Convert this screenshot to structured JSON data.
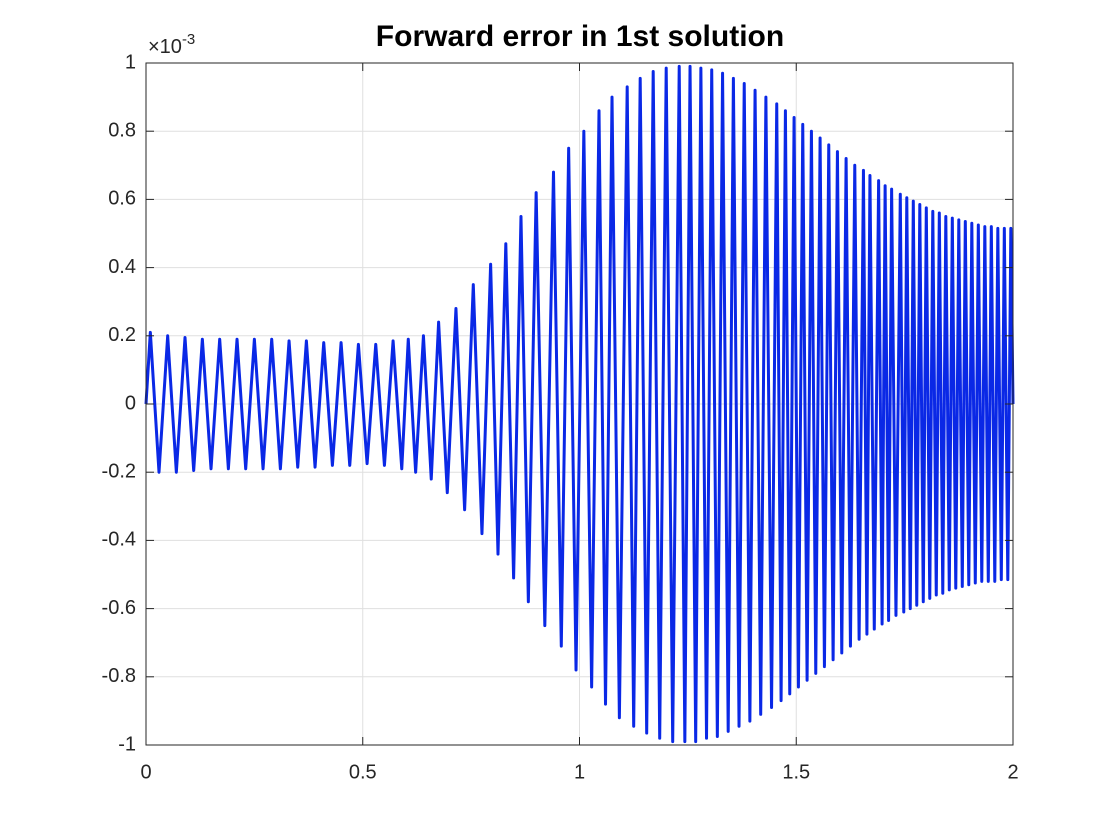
{
  "chart_data": {
    "type": "line",
    "title": "Forward error in 1st solution",
    "y_multiplier": "×10",
    "y_exponent": "-3",
    "x": [
      0,
      0.01,
      0.03,
      0.05,
      0.07,
      0.09,
      0.11,
      0.13,
      0.15,
      0.17,
      0.19,
      0.21,
      0.23,
      0.25,
      0.27,
      0.29,
      0.31,
      0.33,
      0.35,
      0.37,
      0.39,
      0.41,
      0.43,
      0.45,
      0.47,
      0.49,
      0.51,
      0.53,
      0.55,
      0.57,
      0.59,
      0.605,
      0.622,
      0.64,
      0.658,
      0.675,
      0.695,
      0.715,
      0.735,
      0.755,
      0.775,
      0.795,
      0.812,
      0.83,
      0.848,
      0.865,
      0.882,
      0.9,
      0.92,
      0.94,
      0.958,
      0.975,
      0.992,
      1.01,
      1.028,
      1.045,
      1.06,
      1.075,
      1.092,
      1.11,
      1.125,
      1.14,
      1.155,
      1.17,
      1.185,
      1.2,
      1.215,
      1.23,
      1.243,
      1.255,
      1.268,
      1.28,
      1.293,
      1.305,
      1.318,
      1.33,
      1.343,
      1.355,
      1.368,
      1.38,
      1.393,
      1.405,
      1.418,
      1.43,
      1.443,
      1.455,
      1.465,
      1.475,
      1.485,
      1.495,
      1.505,
      1.515,
      1.525,
      1.535,
      1.545,
      1.555,
      1.565,
      1.575,
      1.585,
      1.595,
      1.605,
      1.615,
      1.625,
      1.635,
      1.645,
      1.655,
      1.663,
      1.67,
      1.68,
      1.69,
      1.698,
      1.705,
      1.713,
      1.72,
      1.73,
      1.74,
      1.748,
      1.755,
      1.763,
      1.77,
      1.778,
      1.785,
      1.793,
      1.8,
      1.808,
      1.815,
      1.823,
      1.83,
      1.838,
      1.845,
      1.853,
      1.86,
      1.868,
      1.875,
      1.883,
      1.89,
      1.898,
      1.905,
      1.913,
      1.92,
      1.928,
      1.935,
      1.943,
      1.95,
      1.958,
      1.965,
      1.973,
      1.98,
      1.988,
      1.995,
      2
    ],
    "values": [
      0,
      0.21,
      -0.2,
      0.2,
      -0.2,
      0.195,
      -0.195,
      0.19,
      -0.19,
      0.19,
      -0.19,
      0.19,
      -0.19,
      0.19,
      -0.19,
      0.19,
      -0.19,
      0.185,
      -0.185,
      0.185,
      -0.185,
      0.18,
      -0.18,
      0.18,
      -0.18,
      0.175,
      -0.175,
      0.175,
      -0.18,
      0.185,
      -0.19,
      0.19,
      -0.2,
      0.2,
      -0.22,
      0.24,
      -0.26,
      0.28,
      -0.31,
      0.35,
      -0.38,
      0.41,
      -0.44,
      0.47,
      -0.51,
      0.55,
      -0.58,
      0.62,
      -0.65,
      0.68,
      -0.71,
      0.75,
      -0.78,
      0.8,
      -0.83,
      0.86,
      -0.88,
      0.9,
      -0.92,
      0.93,
      -0.945,
      0.955,
      -0.965,
      0.975,
      -0.98,
      0.985,
      -0.99,
      0.99,
      -0.99,
      0.99,
      -0.99,
      0.985,
      -0.98,
      0.98,
      -0.975,
      0.97,
      -0.96,
      0.955,
      -0.945,
      0.94,
      -0.93,
      0.92,
      -0.91,
      0.9,
      -0.89,
      0.88,
      -0.87,
      0.86,
      -0.85,
      0.84,
      -0.83,
      0.82,
      -0.81,
      0.8,
      -0.79,
      0.78,
      -0.77,
      0.76,
      -0.75,
      0.74,
      -0.73,
      0.72,
      -0.71,
      0.7,
      -0.69,
      0.685,
      -0.675,
      0.67,
      -0.66,
      0.655,
      -0.645,
      0.64,
      -0.635,
      0.63,
      -0.62,
      0.615,
      -0.61,
      0.605,
      -0.6,
      0.595,
      -0.59,
      0.585,
      -0.58,
      0.575,
      -0.57,
      0.565,
      -0.56,
      0.56,
      -0.555,
      0.55,
      -0.545,
      0.545,
      -0.54,
      0.54,
      -0.535,
      0.535,
      -0.53,
      0.53,
      -0.525,
      0.525,
      -0.52,
      0.52,
      -0.52,
      0.52,
      -0.52,
      0.515,
      -0.515,
      0.515,
      -0.515,
      0.515,
      0
    ],
    "color": "#0a28e6",
    "xlim": [
      0,
      2
    ],
    "xticks": [
      0,
      0.5,
      1,
      1.5,
      2
    ],
    "ylim": [
      -1,
      1
    ],
    "yticks": [
      -1,
      -0.8,
      -0.6,
      -0.4,
      -0.2,
      0,
      0.2,
      0.4,
      0.6,
      0.8,
      1
    ],
    "grid": true
  }
}
